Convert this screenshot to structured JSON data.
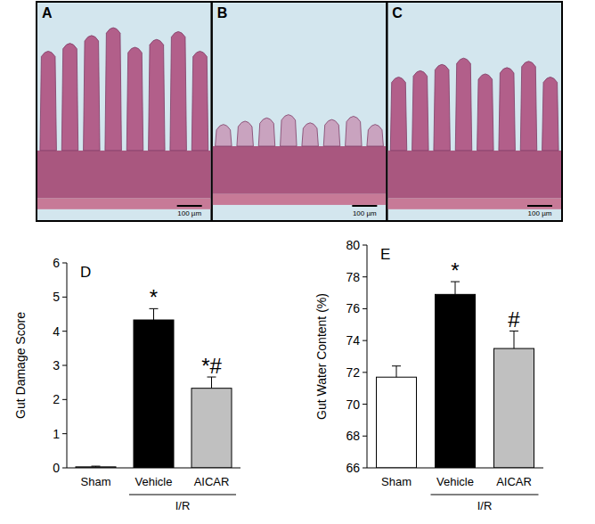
{
  "images": [
    {
      "label": "A",
      "scale_bar": "100 µm"
    },
    {
      "label": "B",
      "scale_bar": "100 µm"
    },
    {
      "label": "C",
      "scale_bar": "100 µm"
    }
  ],
  "chart_data": [
    {
      "type": "bar",
      "title": "D",
      "categories": [
        "Sham",
        "Vehicle",
        "AICAR"
      ],
      "values": [
        0.03,
        4.33,
        2.33
      ],
      "errors": [
        0.02,
        0.33,
        0.33
      ],
      "colors": [
        "#ffffff",
        "#000000",
        "#c0c0c0"
      ],
      "ylabel": "Gut Damage Score",
      "ylim": [
        0,
        6
      ],
      "yticks": [
        0,
        1,
        2,
        3,
        4,
        5,
        6
      ],
      "annotations": [
        {
          "category": "Vehicle",
          "text": "*"
        },
        {
          "category": "AICAR",
          "text": "*#"
        }
      ],
      "group_label": {
        "text": "I/R",
        "categories": [
          "Vehicle",
          "AICAR"
        ]
      }
    },
    {
      "type": "bar",
      "title": "E",
      "categories": [
        "Sham",
        "Vehicle",
        "AICAR"
      ],
      "values": [
        71.7,
        76.9,
        73.5
      ],
      "errors": [
        0.7,
        0.8,
        1.1
      ],
      "colors": [
        "#ffffff",
        "#000000",
        "#c0c0c0"
      ],
      "ylabel": "Gut Water Content (%)",
      "ylim": [
        66,
        80
      ],
      "yticks": [
        66,
        68,
        70,
        72,
        74,
        76,
        78,
        80
      ],
      "annotations": [
        {
          "category": "Vehicle",
          "text": "*"
        },
        {
          "category": "AICAR",
          "text": "#"
        }
      ],
      "group_label": {
        "text": "I/R",
        "categories": [
          "Vehicle",
          "AICAR"
        ]
      }
    }
  ]
}
